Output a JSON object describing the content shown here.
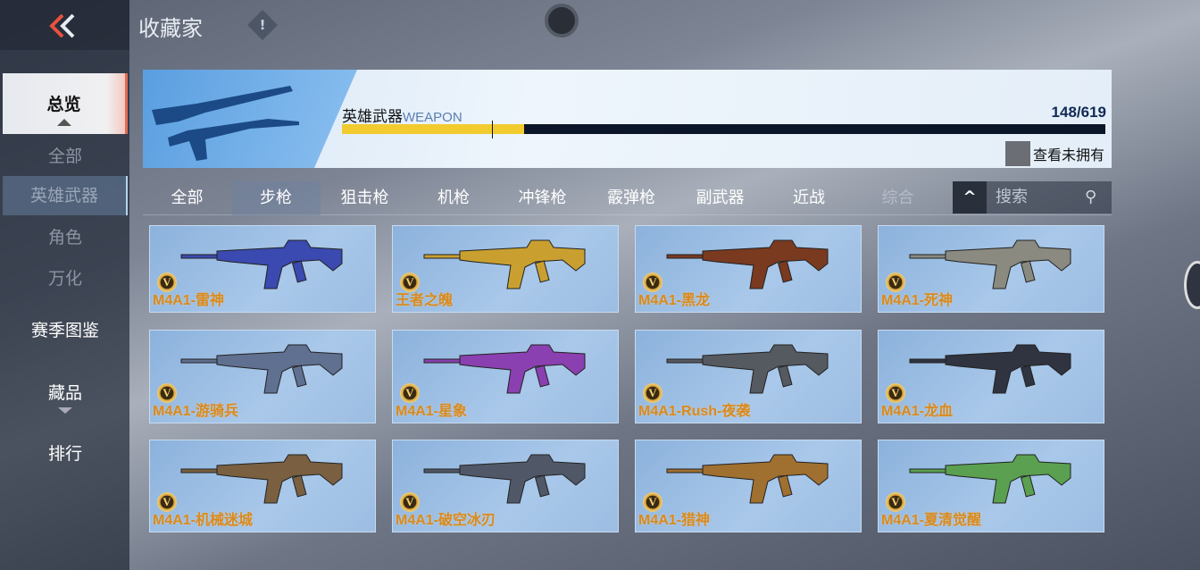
{
  "header": {
    "title": "收藏家",
    "back_icon": "double-chevron-left-icon",
    "info_icon": "exclamation-icon"
  },
  "sidebar": {
    "items": [
      {
        "label": "总览",
        "state": "active"
      },
      {
        "label": "全部",
        "state": "dim"
      },
      {
        "label": "英雄武器",
        "state": "selected"
      },
      {
        "label": "角色",
        "state": "dim"
      },
      {
        "label": "万化",
        "state": "dim"
      },
      {
        "label": "赛季图鉴",
        "state": "normal"
      },
      {
        "label": "藏品",
        "state": "normal"
      },
      {
        "label": "排行",
        "state": "normal"
      }
    ]
  },
  "banner": {
    "label": "英雄武器",
    "label_en": "WEAPON",
    "count": "148/619",
    "progress": 0.239,
    "view_unowned": "查看未拥有"
  },
  "tabs": [
    {
      "label": "全部"
    },
    {
      "label": "步枪",
      "active": true
    },
    {
      "label": "狙击枪"
    },
    {
      "label": "机枪"
    },
    {
      "label": "冲锋枪"
    },
    {
      "label": "霰弹枪"
    },
    {
      "label": "副武器"
    },
    {
      "label": "近战"
    },
    {
      "label": "综合"
    }
  ],
  "search": {
    "placeholder": "搜索",
    "collapse_icon": "caret-up-icon",
    "search_icon": "magnifier-icon"
  },
  "weapons": [
    {
      "name": "M4A1-雷神",
      "badge": "V",
      "color": "#3a4ab0"
    },
    {
      "name": "王者之魄",
      "badge": "V",
      "color": "#c9a030"
    },
    {
      "name": "M4A1-黑龙",
      "badge": "V",
      "color": "#7a3a20"
    },
    {
      "name": "M4A1-死神",
      "badge": "V",
      "color": "#8a8a80"
    },
    {
      "name": "M4A1-游骑兵",
      "badge": "V",
      "color": "#607090"
    },
    {
      "name": "M4A1-星象",
      "badge": "V",
      "color": "#8a40b0"
    },
    {
      "name": "M4A1-Rush-夜袭",
      "badge": "V",
      "color": "#555a60"
    },
    {
      "name": "M4A1-龙血",
      "badge": "V",
      "color": "#303440"
    },
    {
      "name": "M4A1-机械迷城",
      "badge": "V",
      "color": "#7a6040"
    },
    {
      "name": "M4A1-破空冰刃",
      "badge": "V",
      "color": "#505868"
    },
    {
      "name": "M4A1-猎神",
      "badge": "V",
      "color": "#a07030"
    },
    {
      "name": "M4A1-夏清觉醒",
      "badge": "V",
      "color": "#5aa050"
    }
  ]
}
